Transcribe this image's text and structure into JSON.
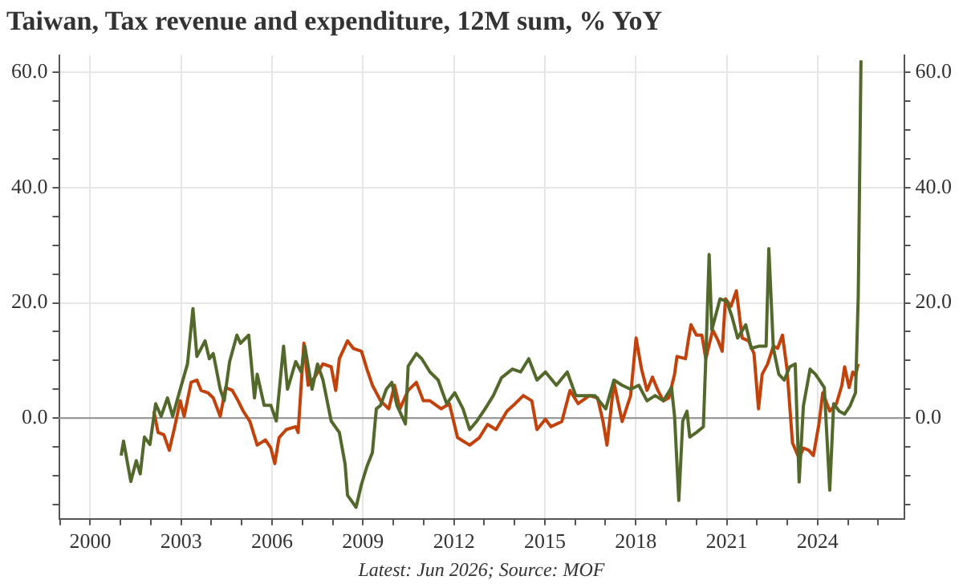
{
  "chart_data": {
    "type": "line",
    "title": "Taiwan, Tax revenue and expenditure, 12M sum, % YoY",
    "annotations": [
      "Latest: Jun 2026; Source: MOF"
    ],
    "series": [
      {
        "color": "#53692b",
        "x": [
          2001.02,
          2001.1,
          2001.34,
          2001.52,
          2001.65,
          2001.79,
          2001.97,
          2002.16,
          2002.34,
          2002.55,
          2002.72,
          2002.97,
          2003.21,
          2003.39,
          2003.52,
          2003.79,
          2003.93,
          2004.06,
          2004.29,
          2004.42,
          2004.6,
          2004.84,
          2004.96,
          2005.23,
          2005.42,
          2005.51,
          2005.74,
          2005.96,
          2006.14,
          2006.38,
          2006.51,
          2006.78,
          2006.96,
          2007.08,
          2007.32,
          2007.5,
          2007.68,
          2007.95,
          2008.22,
          2008.41,
          2008.49,
          2008.77,
          2008.95,
          2009.13,
          2009.31,
          2009.44,
          2009.58,
          2009.77,
          2009.95,
          2010.12,
          2010.4,
          2010.49,
          2010.76,
          2010.94,
          2011.21,
          2011.48,
          2011.76,
          2012.03,
          2012.3,
          2012.52,
          2012.76,
          2013.03,
          2013.3,
          2013.57,
          2013.93,
          2014.2,
          2014.47,
          2014.74,
          2015.02,
          2015.38,
          2015.74,
          2016.02,
          2016.29,
          2016.65,
          2017.01,
          2017.28,
          2017.55,
          2017.83,
          2018.1,
          2018.37,
          2018.64,
          2018.91,
          2019.18,
          2019.28,
          2019.42,
          2019.55,
          2019.69,
          2019.78,
          2020.0,
          2020.23,
          2020.31,
          2020.42,
          2020.51,
          2020.78,
          2021.0,
          2021.18,
          2021.36,
          2021.63,
          2021.81,
          2022.08,
          2022.3,
          2022.39,
          2022.54,
          2022.72,
          2022.9,
          2023.08,
          2023.26,
          2023.39,
          2023.53,
          2023.75,
          2023.93,
          2024.22,
          2024.4,
          2024.53,
          2024.71,
          2024.89,
          2025.07,
          2025.25,
          2025.34,
          2025.43
        ],
        "values": [
          -6.5,
          -4,
          -11,
          -7.4,
          -9.7,
          -3.3,
          -4.6,
          2.5,
          0.3,
          3.5,
          0.3,
          5,
          9.4,
          19,
          10.7,
          13.4,
          10.3,
          11.2,
          5,
          3,
          9.8,
          14.4,
          13,
          14.4,
          3.5,
          7.6,
          2.2,
          2.2,
          -0.5,
          12.5,
          5,
          9.8,
          8,
          12.5,
          5,
          9.4,
          6.6,
          -0.5,
          -2.5,
          -8,
          -13.4,
          -15.5,
          -11.5,
          -8.4,
          -6,
          1.6,
          2.2,
          5,
          6.2,
          2.2,
          -1,
          9,
          11.2,
          10.3,
          8,
          6.6,
          2.5,
          4.4,
          1.6,
          -2,
          -0.5,
          1.6,
          3.9,
          7,
          8.5,
          8,
          10.3,
          6.6,
          8,
          5.7,
          8,
          3.9,
          3.9,
          3.9,
          1.6,
          6.6,
          5.7,
          5,
          5.7,
          3,
          3.9,
          3,
          5.3,
          0.3,
          -14.3,
          -0.5,
          1.2,
          -3.3,
          -2.5,
          -1.5,
          10.3,
          28.4,
          15.3,
          20.7,
          20.3,
          17.5,
          13.9,
          16.2,
          12.1,
          12.5,
          12.5,
          29.4,
          12.1,
          7.6,
          6.6,
          8.9,
          9.4,
          -11.1,
          2.1,
          8.5,
          7.6,
          5.3,
          -12.5,
          2.5,
          1.2,
          0.7,
          2.1,
          4.4,
          21.2,
          62.1
        ]
      },
      {
        "color": "#c2420c",
        "x": [
          2002.1,
          2002.24,
          2002.43,
          2002.61,
          2002.79,
          2002.97,
          2003.1,
          2003.33,
          2003.52,
          2003.66,
          2003.88,
          2004.06,
          2004.29,
          2004.47,
          2004.69,
          2004.88,
          2005.05,
          2005.27,
          2005.51,
          2005.78,
          2005.96,
          2006.09,
          2006.23,
          2006.47,
          2006.78,
          2006.86,
          2007.05,
          2007.19,
          2007.41,
          2007.68,
          2007.95,
          2008.1,
          2008.22,
          2008.49,
          2008.68,
          2008.95,
          2009.13,
          2009.31,
          2009.58,
          2009.85,
          2010.04,
          2010.22,
          2010.49,
          2010.76,
          2010.99,
          2011.21,
          2011.58,
          2011.85,
          2012.12,
          2012.52,
          2012.84,
          2013.11,
          2013.39,
          2013.75,
          2014.02,
          2014.29,
          2014.57,
          2014.74,
          2015.02,
          2015.2,
          2015.56,
          2015.83,
          2016.1,
          2016.47,
          2016.74,
          2016.92,
          2017.05,
          2017.28,
          2017.55,
          2017.83,
          2018.01,
          2018.19,
          2018.37,
          2018.55,
          2018.73,
          2018.91,
          2019.09,
          2019.28,
          2019.36,
          2019.64,
          2019.73,
          2019.82,
          2020.0,
          2020.18,
          2020.31,
          2020.54,
          2020.72,
          2020.85,
          2020.96,
          2021.14,
          2021.32,
          2021.51,
          2021.72,
          2021.9,
          2022.05,
          2022.17,
          2022.35,
          2022.54,
          2022.68,
          2022.84,
          2022.99,
          2023.17,
          2023.39,
          2023.53,
          2023.71,
          2023.86,
          2024.04,
          2024.17,
          2024.4,
          2024.62,
          2024.8,
          2024.89,
          2025.04,
          2025.16,
          2025.25,
          2025.34
        ],
        "values": [
          1.2,
          -2.5,
          -2.9,
          -5.6,
          -1.5,
          3,
          0.3,
          6.2,
          6.6,
          4.8,
          4.4,
          3.5,
          0.3,
          5.3,
          4.8,
          3,
          1.2,
          -0.6,
          -4.7,
          -3.8,
          -5.2,
          -7.9,
          -3.4,
          -2,
          -1.5,
          -2.5,
          13,
          5.7,
          7.1,
          9.4,
          8.9,
          4.8,
          10.3,
          13.4,
          12.1,
          11.6,
          8.5,
          5.7,
          3,
          1.6,
          5.7,
          1.6,
          4.8,
          6.2,
          3,
          3,
          1.6,
          2.5,
          -3.4,
          -4.7,
          -3.4,
          -1.1,
          -2,
          1.2,
          2.5,
          3.9,
          3,
          -2,
          -0.2,
          -1.5,
          -0.6,
          4.8,
          2.5,
          3.9,
          3.5,
          -0.6,
          -4.7,
          6.2,
          -0.6,
          3.9,
          13.9,
          8.5,
          4.8,
          7.1,
          4.8,
          3,
          3.5,
          7.6,
          10.7,
          10.3,
          13.4,
          16.2,
          14.4,
          14.4,
          10.3,
          15.3,
          13.4,
          11.6,
          20.7,
          19.4,
          22.1,
          13.9,
          13.4,
          11.2,
          1.6,
          7.6,
          9.4,
          12.5,
          12.1,
          14.4,
          8.5,
          -4.3,
          -7,
          -5.2,
          -5.6,
          -6.5,
          -1.1,
          4.4,
          1.2,
          2.5,
          5.7,
          8.9,
          5.3,
          8,
          7.4,
          9.4
        ]
      }
    ],
    "xlim": [
      1998.97,
      2026.85
    ],
    "xticks": [
      {
        "value": 1999,
        "label": null
      },
      2000,
      {
        "value": 2001,
        "label": null
      },
      {
        "value": 2002,
        "label": null
      },
      2003,
      {
        "value": 2004,
        "label": null
      },
      {
        "value": 2005,
        "label": null
      },
      2006,
      {
        "value": 2007,
        "label": null
      },
      {
        "value": 2008,
        "label": null
      },
      2009,
      {
        "value": 2010,
        "label": null
      },
      {
        "value": 2011,
        "label": null
      },
      2012,
      {
        "value": 2013,
        "label": null
      },
      {
        "value": 2014,
        "label": null
      },
      2015,
      {
        "value": 2016,
        "label": null
      },
      {
        "value": 2017,
        "label": null
      },
      2018,
      {
        "value": 2019,
        "label": null
      },
      {
        "value": 2020,
        "label": null
      },
      2021,
      {
        "value": 2022,
        "label": null
      },
      {
        "value": 2023,
        "label": null
      },
      2024,
      {
        "value": 2025,
        "label": null
      },
      {
        "value": 2026,
        "label": null
      }
    ],
    "ylim": [
      -17.5,
      63
    ],
    "yticks": [
      {
        "value": -15,
        "label": null
      },
      {
        "value": -10,
        "label": null
      },
      {
        "value": -5,
        "label": null
      },
      {
        "value": 0,
        "label": "0.0"
      },
      {
        "value": 5,
        "label": null
      },
      {
        "value": 10,
        "label": null
      },
      {
        "value": 15,
        "label": null
      },
      {
        "value": 20,
        "label": "20.0"
      },
      {
        "value": 25,
        "label": null
      },
      {
        "value": 30,
        "label": null
      },
      {
        "value": 35,
        "label": null
      },
      {
        "value": 40,
        "label": "40.0"
      },
      {
        "value": 45,
        "label": null
      },
      {
        "value": 50,
        "label": null
      },
      {
        "value": 55,
        "label": null
      },
      {
        "value": 60,
        "label": "60.0"
      }
    ],
    "y2lim": [
      -17.5,
      63
    ],
    "y2ticks": [
      {
        "value": -15,
        "label": null
      },
      {
        "value": -10,
        "label": null
      },
      {
        "value": -5,
        "label": null
      },
      {
        "value": 0,
        "label": "0.0"
      },
      {
        "value": 5,
        "label": null
      },
      {
        "value": 10,
        "label": null
      },
      {
        "value": 15,
        "label": null
      },
      {
        "value": 20,
        "label": "20.0"
      },
      {
        "value": 25,
        "label": null
      },
      {
        "value": 30,
        "label": null
      },
      {
        "value": 35,
        "label": null
      },
      {
        "value": 40,
        "label": "40.0"
      },
      {
        "value": 45,
        "label": null
      },
      {
        "value": 50,
        "label": null
      },
      {
        "value": 55,
        "label": null
      },
      {
        "value": 60,
        "label": "60.0"
      }
    ],
    "grid": true,
    "ref_lines": [
      {
        "axis": "y",
        "value": 0,
        "color": "#999999"
      }
    ]
  }
}
